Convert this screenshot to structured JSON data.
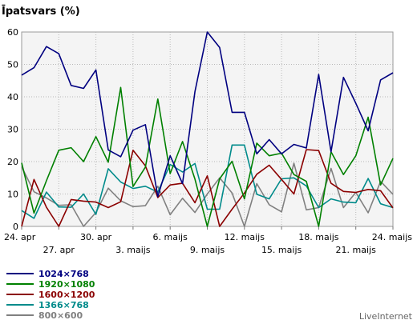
{
  "chart_data": {
    "type": "line",
    "title": "Īpatsvars (%)",
    "ylim": [
      0,
      60
    ],
    "yticks": [
      0,
      10,
      20,
      30,
      40,
      50,
      60
    ],
    "grid": true,
    "x_tick_labels": [
      {
        "index": 0,
        "label": "24. apr",
        "row": 1
      },
      {
        "index": 3,
        "label": "27. apr",
        "row": 2
      },
      {
        "index": 6,
        "label": "30. apr",
        "row": 1
      },
      {
        "index": 9,
        "label": "3. maijs",
        "row": 2
      },
      {
        "index": 12,
        "label": "6. maijs",
        "row": 1
      },
      {
        "index": 15,
        "label": "9. maijs",
        "row": 2
      },
      {
        "index": 18,
        "label": "12. maijs",
        "row": 1
      },
      {
        "index": 21,
        "label": "15. maijs",
        "row": 2
      },
      {
        "index": 24,
        "label": "18. maijs",
        "row": 1
      },
      {
        "index": 27,
        "label": "21. maijs",
        "row": 2
      },
      {
        "index": 30,
        "label": "24. maijs",
        "row": 1
      }
    ],
    "series": [
      {
        "name": "1024×768",
        "color": "#000080",
        "values": [
          46.7,
          49,
          55.5,
          53.3,
          43.5,
          42.6,
          48.3,
          23.6,
          21.5,
          29.7,
          31.4,
          9.2,
          21.8,
          13.2,
          41.6,
          60,
          55.2,
          35.2,
          35.2,
          22.4,
          26.8,
          22.4,
          25.3,
          24.2,
          46.9,
          23,
          46,
          38,
          29.5,
          45.2,
          47.4
        ]
      },
      {
        "name": "1920×1080",
        "color": "#008000",
        "values": [
          19.6,
          4.1,
          14.1,
          23.5,
          24.3,
          20,
          27.7,
          19.8,
          42.9,
          12.3,
          18.3,
          39.3,
          16.3,
          26.2,
          14.6,
          0,
          14.7,
          20.1,
          8.5,
          25.7,
          21.8,
          22.6,
          16,
          13.9,
          0,
          23,
          16,
          21.8,
          33.7,
          12.8,
          21
        ]
      },
      {
        "name": "1600×1200",
        "color": "#8b0000",
        "values": [
          0,
          14.5,
          5.9,
          0,
          8.3,
          7.8,
          7.5,
          5.8,
          7.6,
          23.5,
          18.7,
          8.9,
          12.8,
          13.3,
          7.3,
          15.6,
          0,
          5.3,
          10.3,
          16.1,
          18.9,
          14.5,
          10,
          23.7,
          23.4,
          13.3,
          10.8,
          10.5,
          11.4,
          11,
          5.7
        ]
      },
      {
        "name": "1366×768",
        "color": "#008b8b",
        "values": [
          4.9,
          2.5,
          10.6,
          6,
          5.9,
          10,
          3.7,
          17.8,
          13.7,
          11.7,
          12.4,
          10.6,
          19.1,
          16.8,
          19.4,
          5.3,
          5.3,
          25.1,
          25.1,
          9.9,
          8.5,
          14.7,
          15,
          12.5,
          5.8,
          8.5,
          7.5,
          7.3,
          14.8,
          7,
          5.8
        ]
      },
      {
        "name": "800×600",
        "color": "#808080",
        "values": [
          18.4,
          10.7,
          8.8,
          6.5,
          6.7,
          0,
          4.3,
          11.8,
          7.9,
          6.1,
          6.4,
          12.4,
          3.6,
          8.7,
          4.3,
          10,
          15,
          10.3,
          0,
          13.2,
          6.7,
          4.5,
          19.5,
          5.1,
          5.8,
          17.9,
          5.8,
          10.5,
          4.2,
          13.9,
          9.9
        ]
      }
    ]
  },
  "credit": "LiveInternet"
}
